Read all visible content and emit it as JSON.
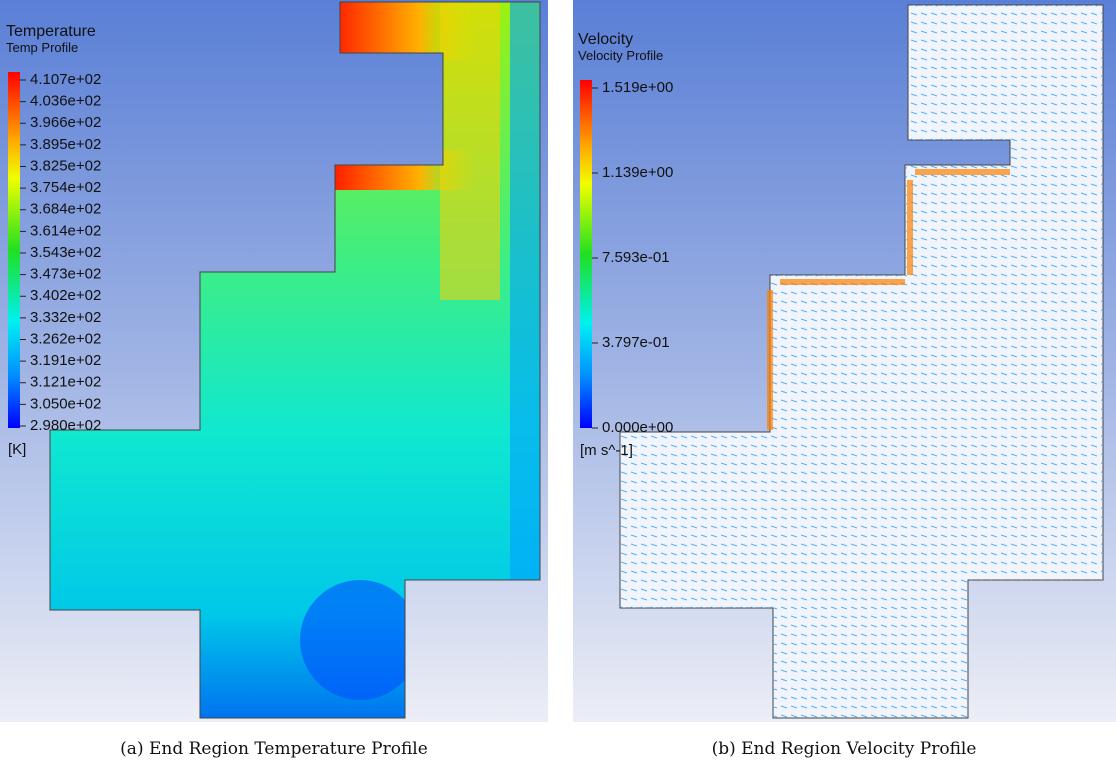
{
  "panels": [
    {
      "legend": {
        "title": "Temperature",
        "subtitle": "Temp Profile",
        "labels": [
          "4.107e+02",
          "4.036e+02",
          "3.966e+02",
          "3.895e+02",
          "3.825e+02",
          "3.754e+02",
          "3.684e+02",
          "3.614e+02",
          "3.543e+02",
          "3.473e+02",
          "3.402e+02",
          "3.332e+02",
          "3.262e+02",
          "3.191e+02",
          "3.121e+02",
          "3.050e+02",
          "2.980e+02"
        ],
        "unit": "[K]"
      },
      "caption": "(a) End Region Temperature Profile"
    },
    {
      "legend": {
        "title": "Velocity",
        "subtitle": "Velocity Profile",
        "labels": [
          "1.519e+00",
          "1.139e+00",
          "7.593e-01",
          "3.797e-01",
          "0.000e+00"
        ],
        "unit": "[m s^-1]"
      },
      "caption": "(b) End Region Velocity Profile"
    }
  ]
}
